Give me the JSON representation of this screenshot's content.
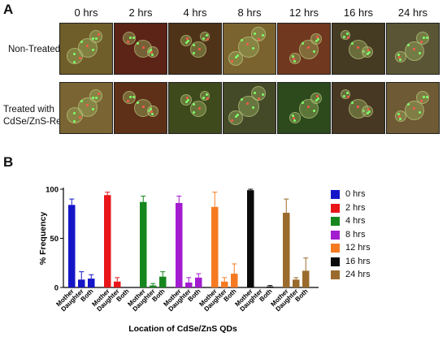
{
  "panel_a": {
    "letter": "A",
    "time_labels": [
      "0 hrs",
      "2 hrs",
      "4 hrs",
      "8 hrs",
      "12 hrs",
      "16 hrs",
      "24 hrs"
    ],
    "row_labels": {
      "non_treated": "Non-Treated",
      "treated_line1": "Treated with",
      "treated_line2": "CdSe/ZnS-Red"
    },
    "tile_colors": {
      "non_treated": [
        "#6f5d2a",
        "#5c2317",
        "#4f3318",
        "#7b6330",
        "#70381f",
        "#453a22",
        "#5a5534"
      ],
      "treated": [
        "#7a6433",
        "#5e3018",
        "#3e4a1c",
        "#444a28",
        "#2c4a1c",
        "#463822",
        "#6e5a34"
      ]
    }
  },
  "panel_b": {
    "letter": "B"
  },
  "chart_data": {
    "type": "bar",
    "title": "",
    "xlabel": "Location of CdSe/ZnS QDs",
    "ylabel": "% Frequency",
    "ylim": [
      0,
      100
    ],
    "yticks": [
      "0",
      "50",
      "100"
    ],
    "categories": [
      "Mother",
      "Daughter",
      "Both"
    ],
    "legend_position": "right",
    "series": [
      {
        "name": "0 hrs",
        "color": "#1515c8",
        "values": [
          84,
          8,
          9
        ],
        "errors": [
          6,
          8,
          4
        ]
      },
      {
        "name": "2 hrs",
        "color": "#e8161a",
        "values": [
          94,
          6,
          0
        ],
        "errors": [
          3,
          4,
          0
        ]
      },
      {
        "name": "4 hrs",
        "color": "#16871f",
        "values": [
          87,
          2,
          11
        ],
        "errors": [
          6,
          2,
          5
        ]
      },
      {
        "name": "8 hrs",
        "color": "#a31ccf",
        "values": [
          86,
          5,
          10
        ],
        "errors": [
          7,
          5,
          4
        ]
      },
      {
        "name": "12 hrs",
        "color": "#f57a22",
        "values": [
          82,
          6,
          14
        ],
        "errors": [
          15,
          4,
          10
        ]
      },
      {
        "name": "16 hrs",
        "color": "#0a0a0a",
        "values": [
          99,
          0,
          1
        ],
        "errors": [
          1,
          0,
          1
        ]
      },
      {
        "name": "24 hrs",
        "color": "#9a6b2c",
        "values": [
          76,
          8,
          17
        ],
        "errors": [
          14,
          2,
          13
        ]
      }
    ]
  }
}
